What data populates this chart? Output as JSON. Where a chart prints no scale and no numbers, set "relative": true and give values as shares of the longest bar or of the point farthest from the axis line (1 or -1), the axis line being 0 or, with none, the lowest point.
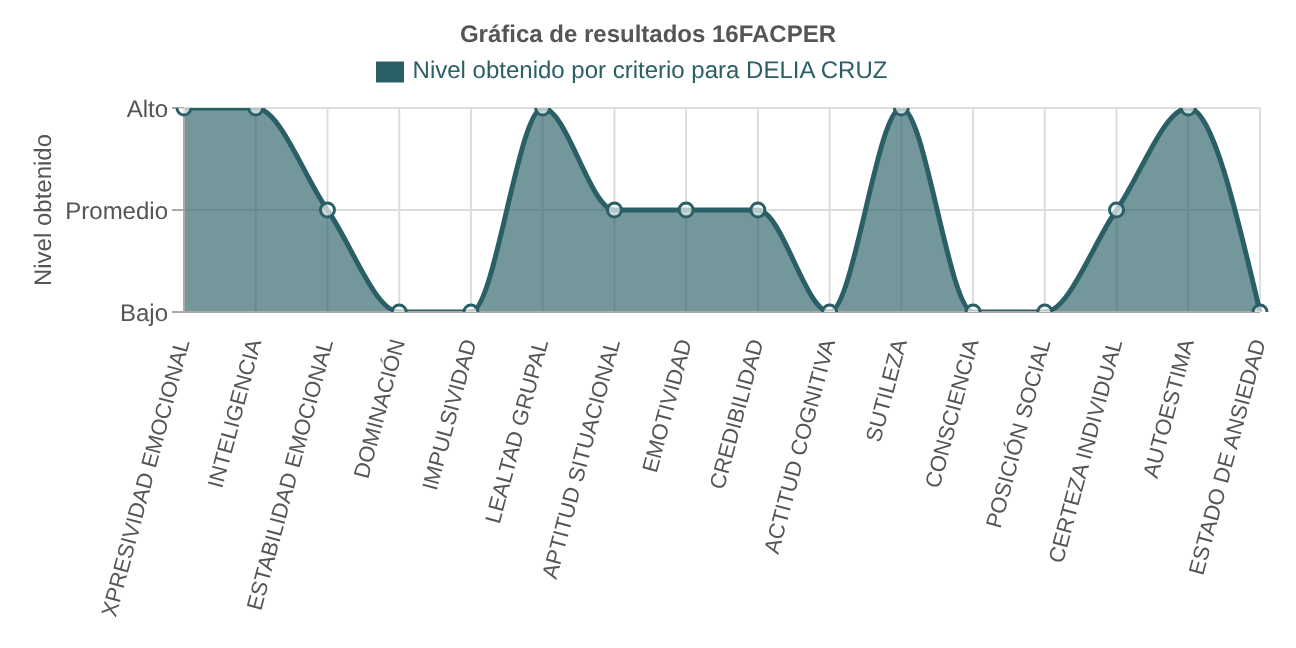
{
  "chart_data": {
    "type": "area",
    "title": "Gráfica de resultados 16FACPER",
    "ylabel": "Nivel obtenido",
    "categories": [
      "XPRESIVIDAD EMOCIONAL",
      "INTELIGENCIA",
      "ESTABILIDAD EMOCIONAL",
      "DOMINACIÓN",
      "IMPULSIVIDAD",
      "LEALTAD GRUPAL",
      "APTITUD SITUACIONAL",
      "EMOTIVIDAD",
      "CREDIBILIDAD",
      "ACTITUD COGNITIVA",
      "SUTILEZA",
      "CONSCIENCIA",
      "POSICIÓN SOCIAL",
      "CERTEZA INDIVIDUAL",
      "AUTOESTIMA",
      "ESTADO DE ANSIEDAD"
    ],
    "series": [
      {
        "name": "Nivel obtenido por criterio para DELIA CRUZ",
        "color": "#2a5f66",
        "values": [
          1,
          1,
          0.5,
          0,
          0,
          1,
          0.5,
          0.5,
          0.5,
          0,
          1,
          0,
          0,
          0.5,
          1,
          0
        ]
      }
    ],
    "relative": true,
    "annotations": [
      "Bajo",
      "Promedio",
      "Alto"
    ],
    "grid": true,
    "legend": "top",
    "marker": "circle",
    "line_style": "solid"
  }
}
